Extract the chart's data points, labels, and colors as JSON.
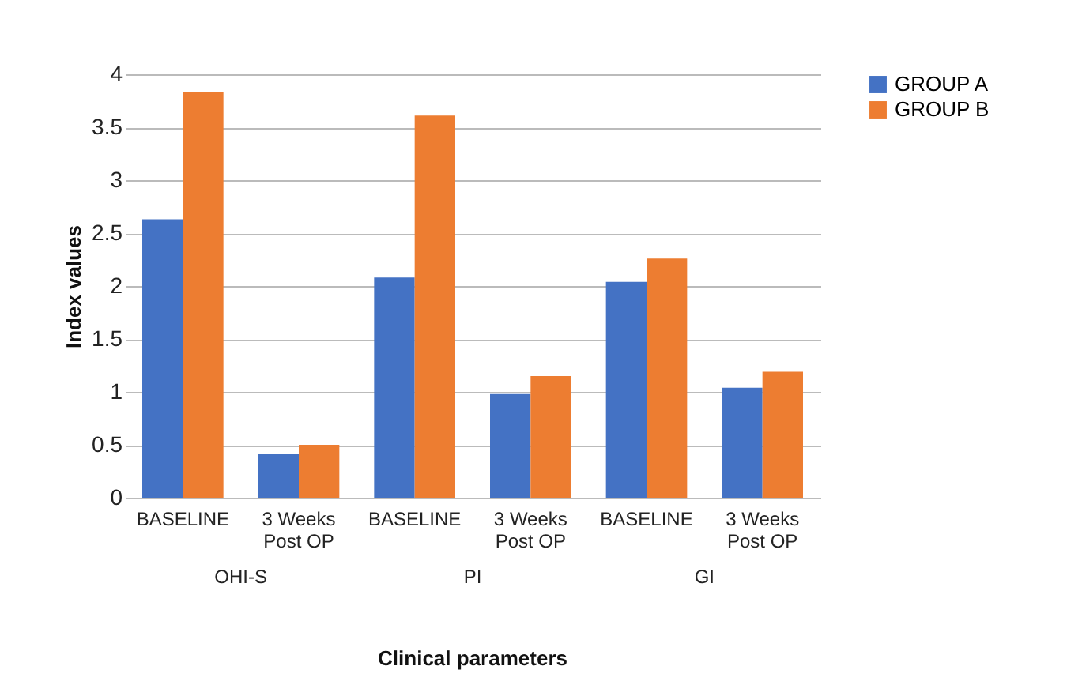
{
  "chart_data": {
    "type": "bar",
    "xlabel": "Clinical parameters",
    "ylabel": "Index values",
    "categories": [
      "BASELINE",
      "3 Weeks Post OP",
      "BASELINE",
      "3 Weeks Post OP",
      "BASELINE",
      "3 Weeks Post OP"
    ],
    "series": [
      {
        "name": "GROUP A",
        "color": "#4472c4",
        "values": [
          2.63,
          0.41,
          2.08,
          0.98,
          2.04,
          1.04
        ]
      },
      {
        "name": "GROUP B",
        "color": "#ed7d31",
        "values": [
          3.83,
          0.5,
          3.61,
          1.15,
          2.26,
          1.19
        ]
      }
    ],
    "annotations": [
      "OHI-S",
      "PI",
      "GI"
    ],
    "ylim": [
      0,
      4
    ],
    "yticks": [
      0,
      0.5,
      1,
      1.5,
      2,
      2.5,
      3,
      3.5,
      4
    ],
    "grid": true,
    "legend": "right"
  }
}
